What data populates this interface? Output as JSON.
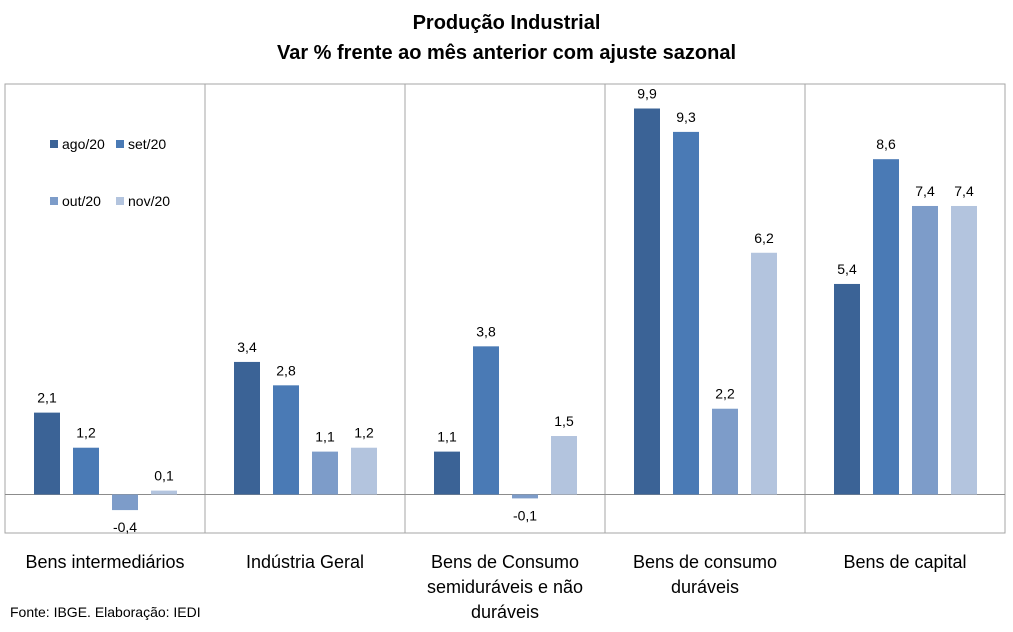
{
  "title": "Produção Industrial",
  "subtitle": "Var % frente ao mês anterior com ajuste sazonal",
  "source": "Fonte: IBGE. Elaboração: IEDI",
  "chart_data": {
    "type": "bar",
    "title": "Produção Industrial",
    "subtitle": "Var % frente ao mês anterior com ajuste sazonal",
    "categories": [
      [
        "Bens intermediários"
      ],
      [
        "Indústria Geral"
      ],
      [
        "Bens de Consumo",
        "semiduráveis e não",
        "duráveis"
      ],
      [
        "Bens de consumo",
        "duráveis"
      ],
      [
        "Bens de capital"
      ]
    ],
    "series": [
      {
        "name": "ago/20",
        "color": "#3b6396",
        "values": [
          2.1,
          3.4,
          1.1,
          9.9,
          5.4
        ]
      },
      {
        "name": "set/20",
        "color": "#4a7ab5",
        "values": [
          1.2,
          2.8,
          3.8,
          9.3,
          8.6
        ]
      },
      {
        "name": "out/20",
        "color": "#7d9cc9",
        "values": [
          -0.4,
          1.1,
          -0.1,
          2.2,
          7.4
        ]
      },
      {
        "name": "nov/20",
        "color": "#b3c4de",
        "values": [
          0.1,
          1.2,
          1.5,
          6.2,
          7.4
        ]
      }
    ],
    "value_labels": [
      [
        "2,1",
        "1,2",
        "-0,4",
        "0,1"
      ],
      [
        "3,4",
        "2,8",
        "1,1",
        "1,2"
      ],
      [
        "1,1",
        "3,8",
        "-0,1",
        "1,5"
      ],
      [
        "9,9",
        "9,3",
        "2,2",
        "6,2"
      ],
      [
        "5,4",
        "8,6",
        "7,4",
        "7,4"
      ]
    ],
    "ylim": [
      -1.0,
      10.6
    ],
    "legend_position": "top-left",
    "grid": false
  }
}
